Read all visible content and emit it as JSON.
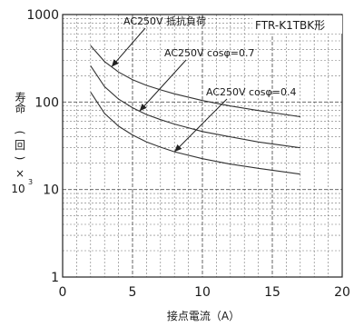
{
  "chart_data": {
    "type": "line",
    "model_label": "FTR-K1TBK形",
    "xlabel": "接点電流（A）",
    "ylabel": {
      "main": "寿命",
      "paren_open": "(",
      "unit_times": "回",
      "paren_close": ")",
      "multiplier_sign": "×",
      "multiplier_base": "10",
      "multiplier_exp": "3"
    },
    "x_axis": {
      "min": 0,
      "max": 20,
      "ticks": [
        "0",
        "5",
        "10",
        "15",
        "20"
      ],
      "tick_values": [
        0,
        5,
        10,
        15,
        20
      ]
    },
    "y_axis": {
      "scale": "log",
      "min": 1,
      "max": 1000,
      "ticks": [
        "1",
        "10",
        "100",
        "1000"
      ],
      "tick_values": [
        1,
        10,
        100,
        1000
      ]
    },
    "grid": true,
    "series": [
      {
        "name": "AC250V 抵抗負荷",
        "x": [
          2,
          3,
          4,
          5,
          6,
          7,
          8,
          10,
          12,
          14,
          17
        ],
        "y": [
          440,
          290,
          220,
          180,
          155,
          138,
          124,
          104,
          90,
          80,
          68
        ]
      },
      {
        "name": "AC250V cosφ=0.7",
        "x": [
          2,
          3,
          4,
          5,
          6,
          7,
          8,
          10,
          12,
          14,
          17
        ],
        "y": [
          260,
          150,
          108,
          86,
          72,
          63,
          56,
          46,
          40,
          35,
          30
        ]
      },
      {
        "name": "AC250V cosφ=0.4",
        "x": [
          2,
          3,
          4,
          5,
          6,
          7,
          8,
          10,
          12,
          14,
          17
        ],
        "y": [
          130,
          74,
          53,
          42,
          35,
          30.5,
          27,
          22.5,
          19.5,
          17.5,
          15
        ]
      }
    ]
  }
}
